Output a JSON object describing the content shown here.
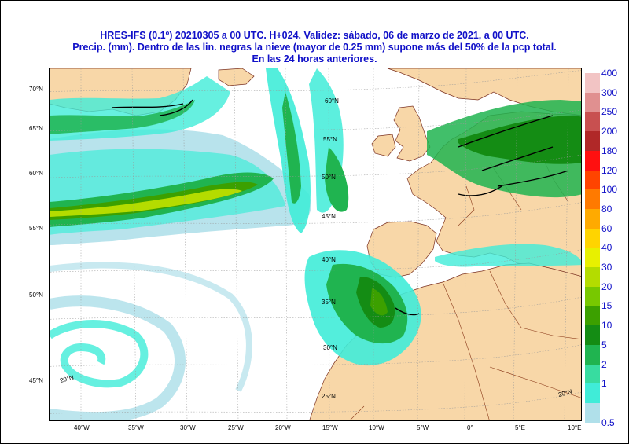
{
  "title": {
    "line1": "HRES-IFS (0.1º) 20210305 a 00 UTC.  H+024. Validez: sábado, 06 de marzo de 2021,  a  00 UTC.",
    "line2": "Precip. (mm). Dentro de las lin. negras la nieve (mayor de 0.25 mm) supone más del 50% de la pcp total.",
    "line3": "En las 24 horas anteriores."
  },
  "lat_labels_left": [
    "70°N",
    "65°N",
    "60°N",
    "55°N",
    "50°N",
    "45°N"
  ],
  "lon_labels_bottom": [
    "40°W",
    "35°W",
    "30°W",
    "25°W",
    "20°W",
    "15°W",
    "10°W",
    "5°W",
    "0°",
    "5°E",
    "10°E"
  ],
  "grid_labels_inside": [
    "60°N",
    "55°N",
    "50°N",
    "45°N",
    "40°N",
    "35°N",
    "30°N",
    "25°N",
    "20°N",
    "20°N"
  ],
  "legend": {
    "labels": [
      "400",
      "300",
      "250",
      "200",
      "180",
      "120",
      "100",
      "80",
      "60",
      "40",
      "30",
      "20",
      "15",
      "10",
      "5",
      "2",
      "1",
      "0.5"
    ],
    "colors": [
      "#f2c4c4",
      "#e09090",
      "#c85050",
      "#b02828",
      "#ff1010",
      "#ff4400",
      "#ff7a00",
      "#ffaa00",
      "#ffd400",
      "#e8f000",
      "#b4dc00",
      "#78c800",
      "#3ca000",
      "#148c14",
      "#20b450",
      "#38dca0",
      "#40ecd8",
      "#b0e0ea"
    ]
  },
  "colors": {
    "land": "#f8d7a8",
    "sea": "#ffffff",
    "title": "#1010c8",
    "grid": "#aaaaaa",
    "border": "#8b3a1a",
    "snow_line": "#000000"
  }
}
